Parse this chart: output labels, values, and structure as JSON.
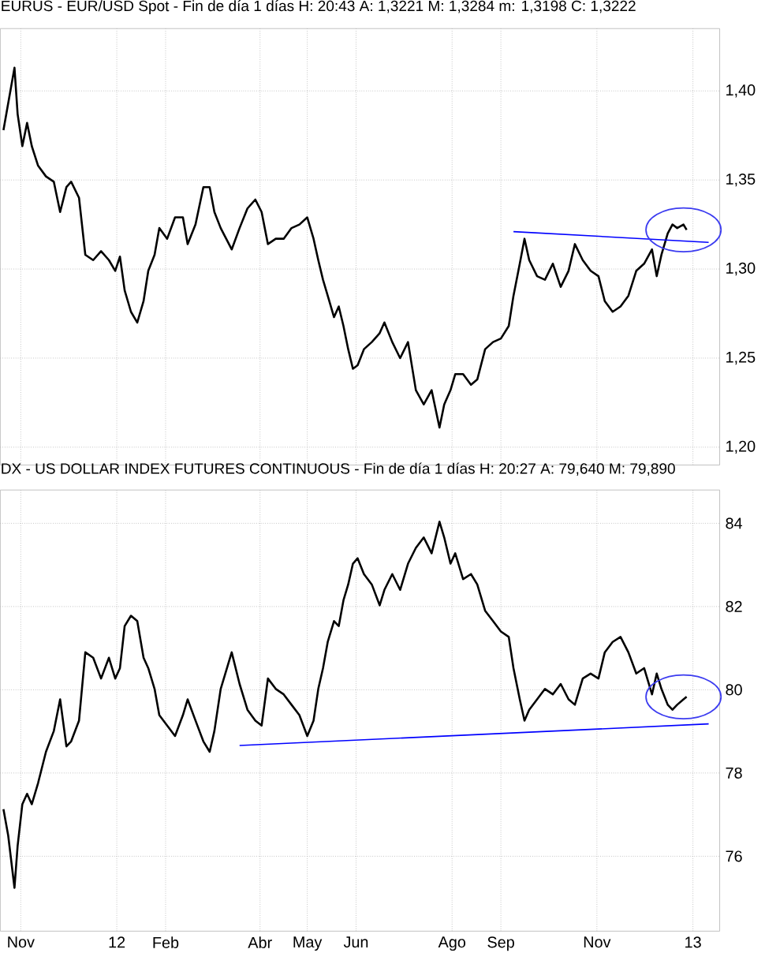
{
  "chart_data": [
    {
      "type": "line",
      "title": "EURUS - EUR/USD Spot - Fin de día 1 días H: 20:43 A: 1,3221 M: 1,3284 m: 1,3198 C: 1,3222",
      "x": [
        "2011-10-21",
        "2011-10-24",
        "2011-10-28",
        "2011-10-30",
        "2011-11-02",
        "2011-11-05",
        "2011-11-08",
        "2011-11-12",
        "2011-11-17",
        "2011-11-22",
        "2011-11-26",
        "2011-11-30",
        "2011-12-03",
        "2011-12-08",
        "2011-12-12",
        "2011-12-17",
        "2011-12-22",
        "2011-12-27",
        "2011-12-31",
        "2012-01-03",
        "2012-01-06",
        "2012-01-10",
        "2012-01-14",
        "2012-01-18",
        "2012-01-21",
        "2012-01-25",
        "2012-01-28",
        "2012-02-02",
        "2012-02-07",
        "2012-02-12",
        "2012-02-15",
        "2012-02-20",
        "2012-02-25",
        "2012-02-29",
        "2012-03-03",
        "2012-03-07",
        "2012-03-14",
        "2012-03-19",
        "2012-03-24",
        "2012-03-29",
        "2012-04-02",
        "2012-04-06",
        "2012-04-11",
        "2012-04-16",
        "2012-04-21",
        "2012-04-26",
        "2012-05-01",
        "2012-05-05",
        "2012-05-08",
        "2012-05-11",
        "2012-05-14",
        "2012-05-18",
        "2012-05-21",
        "2012-05-24",
        "2012-05-27",
        "2012-05-30",
        "2012-06-02",
        "2012-06-06",
        "2012-06-11",
        "2012-06-16",
        "2012-06-19",
        "2012-06-24",
        "2012-06-29",
        "2012-07-04",
        "2012-07-09",
        "2012-07-14",
        "2012-07-19",
        "2012-07-24",
        "2012-07-27",
        "2012-07-31",
        "2012-08-03",
        "2012-08-08",
        "2012-08-13",
        "2012-08-17",
        "2012-08-22",
        "2012-08-27",
        "2012-09-01",
        "2012-09-06",
        "2012-09-09",
        "2012-09-13",
        "2012-09-16",
        "2012-09-19",
        "2012-09-24",
        "2012-09-29",
        "2012-10-04",
        "2012-10-09",
        "2012-10-14",
        "2012-10-18",
        "2012-10-23",
        "2012-10-28",
        "2012-11-02",
        "2012-11-06",
        "2012-11-11",
        "2012-11-16",
        "2012-11-21",
        "2012-11-26",
        "2012-12-01",
        "2012-12-06",
        "2012-12-09",
        "2012-12-12",
        "2012-12-16",
        "2012-12-19",
        "2012-12-22",
        "2012-12-26",
        "2012-12-28"
      ],
      "series": [
        {
          "color": "#000000",
          "values": [
            1.378,
            1.393,
            1.413,
            1.387,
            1.369,
            1.382,
            1.369,
            1.358,
            1.352,
            1.349,
            1.332,
            1.346,
            1.349,
            1.34,
            1.308,
            1.305,
            1.31,
            1.305,
            1.299,
            1.307,
            1.288,
            1.276,
            1.27,
            1.282,
            1.299,
            1.308,
            1.323,
            1.317,
            1.329,
            1.329,
            1.314,
            1.325,
            1.346,
            1.346,
            1.332,
            1.323,
            1.311,
            1.323,
            1.334,
            1.339,
            1.332,
            1.314,
            1.317,
            1.317,
            1.323,
            1.325,
            1.329,
            1.317,
            1.305,
            1.294,
            1.285,
            1.273,
            1.279,
            1.268,
            1.255,
            1.244,
            1.246,
            1.255,
            1.259,
            1.264,
            1.27,
            1.259,
            1.25,
            1.259,
            1.232,
            1.224,
            1.232,
            1.211,
            1.224,
            1.232,
            1.241,
            1.241,
            1.235,
            1.238,
            1.255,
            1.259,
            1.261,
            1.268,
            1.285,
            1.303,
            1.317,
            1.305,
            1.296,
            1.294,
            1.303,
            1.29,
            1.299,
            1.314,
            1.305,
            1.299,
            1.296,
            1.282,
            1.276,
            1.279,
            1.285,
            1.299,
            1.303,
            1.311,
            1.296,
            1.308,
            1.32,
            1.325,
            1.323,
            1.325,
            1.322
          ]
        },
        {
          "type": "line",
          "color": "#0000ff",
          "x": [
            "2012-09-09",
            "2013-01-11"
          ],
          "values": [
            1.321,
            1.315
          ]
        }
      ],
      "xlim": [
        "2011-10-19",
        "2013-01-18"
      ],
      "ylim": [
        1.19,
        1.435
      ],
      "xticks": [
        {
          "value": "2011-11-01",
          "label": null
        },
        {
          "value": "2012-01-01",
          "label": null
        },
        {
          "value": "2012-02-01",
          "label": null
        },
        {
          "value": "2012-04-01",
          "label": null
        },
        {
          "value": "2012-05-01",
          "label": null
        },
        {
          "value": "2012-06-01",
          "label": null
        },
        {
          "value": "2012-08-01",
          "label": null
        },
        {
          "value": "2012-09-01",
          "label": null
        },
        {
          "value": "2012-11-01",
          "label": null
        },
        {
          "value": "2013-01-01",
          "label": null
        }
      ],
      "yticks": [
        {
          "value": 1.2,
          "label": "1,20"
        },
        {
          "value": 1.25,
          "label": "1,25"
        },
        {
          "value": 1.3,
          "label": "1,30"
        },
        {
          "value": 1.35,
          "label": "1,35"
        },
        {
          "value": 1.4,
          "label": "1,40"
        }
      ],
      "tick_labels": "y",
      "grid": true
    },
    {
      "type": "line",
      "title": "DX - US DOLLAR INDEX FUTURES CONTINUOUS - Fin de día 1 días H: 20:27 A: 79,640 M: 79,890",
      "x": [
        "2011-10-21",
        "2011-10-24",
        "2011-10-28",
        "2011-10-30",
        "2011-11-02",
        "2011-11-05",
        "2011-11-08",
        "2011-11-12",
        "2011-11-17",
        "2011-11-22",
        "2011-11-26",
        "2011-11-30",
        "2011-12-03",
        "2011-12-08",
        "2011-12-12",
        "2011-12-17",
        "2011-12-22",
        "2011-12-27",
        "2011-12-31",
        "2012-01-03",
        "2012-01-06",
        "2012-01-10",
        "2012-01-14",
        "2012-01-18",
        "2012-01-21",
        "2012-01-25",
        "2012-01-28",
        "2012-02-02",
        "2012-02-07",
        "2012-02-12",
        "2012-02-15",
        "2012-02-20",
        "2012-02-25",
        "2012-02-29",
        "2012-03-03",
        "2012-03-07",
        "2012-03-14",
        "2012-03-19",
        "2012-03-24",
        "2012-03-29",
        "2012-04-02",
        "2012-04-06",
        "2012-04-11",
        "2012-04-16",
        "2012-04-21",
        "2012-04-26",
        "2012-05-01",
        "2012-05-05",
        "2012-05-08",
        "2012-05-11",
        "2012-05-14",
        "2012-05-18",
        "2012-05-21",
        "2012-05-24",
        "2012-05-27",
        "2012-05-30",
        "2012-06-02",
        "2012-06-06",
        "2012-06-11",
        "2012-06-16",
        "2012-06-19",
        "2012-06-24",
        "2012-06-29",
        "2012-07-04",
        "2012-07-09",
        "2012-07-14",
        "2012-07-19",
        "2012-07-24",
        "2012-07-27",
        "2012-07-31",
        "2012-08-03",
        "2012-08-08",
        "2012-08-13",
        "2012-08-17",
        "2012-08-22",
        "2012-08-27",
        "2012-09-01",
        "2012-09-06",
        "2012-09-09",
        "2012-09-13",
        "2012-09-16",
        "2012-09-19",
        "2012-09-24",
        "2012-09-29",
        "2012-10-04",
        "2012-10-09",
        "2012-10-14",
        "2012-10-18",
        "2012-10-23",
        "2012-10-28",
        "2012-11-02",
        "2012-11-06",
        "2012-11-11",
        "2012-11-16",
        "2012-11-21",
        "2012-11-26",
        "2012-12-01",
        "2012-12-06",
        "2012-12-09",
        "2012-12-12",
        "2012-12-16",
        "2012-12-19",
        "2012-12-22",
        "2012-12-26",
        "2012-12-28"
      ],
      "series": [
        {
          "color": "#000000",
          "values": [
            77.13,
            76.5,
            75.24,
            76.25,
            77.25,
            77.5,
            77.25,
            77.76,
            78.51,
            79.01,
            79.77,
            78.64,
            78.76,
            79.26,
            80.9,
            80.77,
            80.27,
            80.77,
            80.27,
            80.52,
            81.53,
            81.78,
            81.65,
            80.77,
            80.52,
            80.02,
            79.39,
            79.14,
            78.89,
            79.39,
            79.77,
            79.26,
            78.76,
            78.51,
            79.01,
            80.02,
            80.9,
            80.14,
            79.52,
            79.26,
            79.14,
            80.27,
            80.02,
            79.89,
            79.64,
            79.39,
            78.89,
            79.26,
            80.02,
            80.52,
            81.15,
            81.65,
            81.53,
            82.15,
            82.53,
            83.03,
            83.16,
            82.78,
            82.53,
            82.03,
            82.4,
            82.78,
            82.4,
            83.03,
            83.41,
            83.66,
            83.28,
            84.04,
            83.66,
            83.03,
            83.28,
            82.66,
            82.78,
            82.53,
            81.9,
            81.65,
            81.4,
            81.27,
            80.52,
            79.77,
            79.26,
            79.52,
            79.77,
            80.02,
            79.89,
            80.14,
            79.77,
            79.64,
            80.27,
            80.39,
            80.27,
            80.9,
            81.15,
            81.27,
            80.9,
            80.39,
            80.52,
            79.89,
            80.39,
            80.02,
            79.64,
            79.52,
            79.64,
            79.77,
            79.83
          ]
        },
        {
          "type": "line",
          "color": "#0000ff",
          "x": [
            "2012-03-19",
            "2013-01-11"
          ],
          "values": [
            78.66,
            79.18
          ]
        }
      ],
      "xlim": [
        "2011-10-19",
        "2013-01-18"
      ],
      "ylim": [
        74.2,
        84.8
      ],
      "xticks": [
        {
          "value": "2011-11-01",
          "label": "Nov"
        },
        {
          "value": "2012-01-01",
          "label": "12"
        },
        {
          "value": "2012-02-01",
          "label": "Feb"
        },
        {
          "value": "2012-04-01",
          "label": "Abr"
        },
        {
          "value": "2012-05-01",
          "label": "May"
        },
        {
          "value": "2012-06-01",
          "label": "Jun"
        },
        {
          "value": "2012-08-01",
          "label": "Ago"
        },
        {
          "value": "2012-09-01",
          "label": "Sep"
        },
        {
          "value": "2012-11-01",
          "label": "Nov"
        },
        {
          "value": "2013-01-01",
          "label": "13"
        }
      ],
      "yticks": [
        76,
        78,
        80,
        82,
        84
      ],
      "grid": true
    }
  ]
}
